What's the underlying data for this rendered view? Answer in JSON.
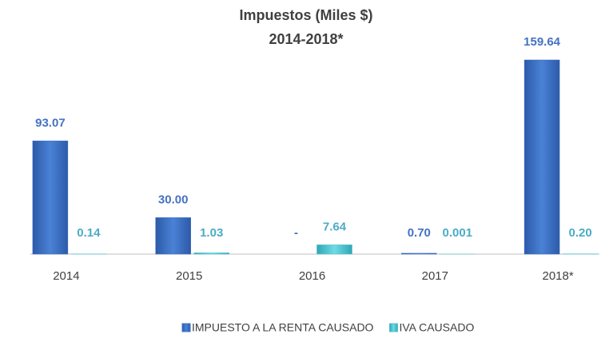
{
  "chart_data": {
    "type": "bar",
    "title": "Impuestos (Miles $)",
    "subtitle": "2014-2018*",
    "categories": [
      "2014",
      "2015",
      "2016",
      "2017",
      "2018*"
    ],
    "series": [
      {
        "name": "IMPUESTO A LA RENTA CAUSADO",
        "color": "#3b6fc6",
        "label_color": "#4472c4",
        "values": [
          93.07,
          30,
          0,
          0.7,
          159.64
        ],
        "value_labels": [
          "93.07",
          "30.00",
          "-",
          "0.70",
          "159.64"
        ]
      },
      {
        "name": "IVA CAUSADO",
        "color": "#4cc3cf",
        "label_color": "#4bacc6",
        "values": [
          0.14,
          1.03,
          7.64,
          0.001,
          0.2
        ],
        "value_labels": [
          "0.14",
          "1.03",
          "7.64",
          "0.001",
          "0.20"
        ]
      }
    ],
    "legend": "bottom"
  }
}
